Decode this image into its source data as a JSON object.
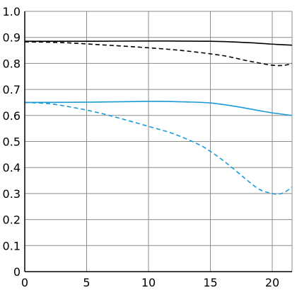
{
  "chart_data": {
    "type": "line",
    "title": "",
    "xlabel": "",
    "ylabel": "",
    "xlim": [
      0,
      21.6
    ],
    "ylim": [
      0,
      1.0
    ],
    "grid": true,
    "x_ticks": [
      "0",
      "5",
      "10",
      "15",
      "20"
    ],
    "y_ticks": [
      "0",
      "0.1",
      "0.2",
      "0.3",
      "0.4",
      "0.5",
      "0.6",
      "0.7",
      "0.8",
      "0.9",
      "1.0"
    ],
    "series": [
      {
        "color": "#000000",
        "dash": "solid",
        "x": [
          0,
          5,
          10,
          15,
          18,
          20,
          21.6
        ],
        "y": [
          0.885,
          0.885,
          0.886,
          0.885,
          0.88,
          0.874,
          0.87
        ]
      },
      {
        "color": "#000000",
        "dash": "dashed",
        "x": [
          0,
          3,
          6,
          10,
          13,
          16,
          18,
          20,
          21,
          21.6
        ],
        "y": [
          0.883,
          0.88,
          0.872,
          0.86,
          0.848,
          0.83,
          0.81,
          0.793,
          0.793,
          0.8
        ]
      },
      {
        "color": "#1a9ad6",
        "dash": "solid",
        "x": [
          0,
          5,
          10,
          13,
          15,
          17,
          19,
          20,
          21.6
        ],
        "y": [
          0.65,
          0.651,
          0.654,
          0.652,
          0.648,
          0.635,
          0.618,
          0.61,
          0.6
        ]
      },
      {
        "color": "#1a9ad6",
        "dash": "dashed",
        "x": [
          0,
          2,
          4,
          6,
          8,
          10,
          12,
          14,
          15,
          16,
          17,
          18,
          19,
          20,
          20.5,
          21,
          21.6
        ],
        "y": [
          0.65,
          0.645,
          0.63,
          0.61,
          0.585,
          0.558,
          0.53,
          0.49,
          0.462,
          0.428,
          0.39,
          0.35,
          0.315,
          0.3,
          0.298,
          0.305,
          0.325
        ]
      }
    ]
  }
}
